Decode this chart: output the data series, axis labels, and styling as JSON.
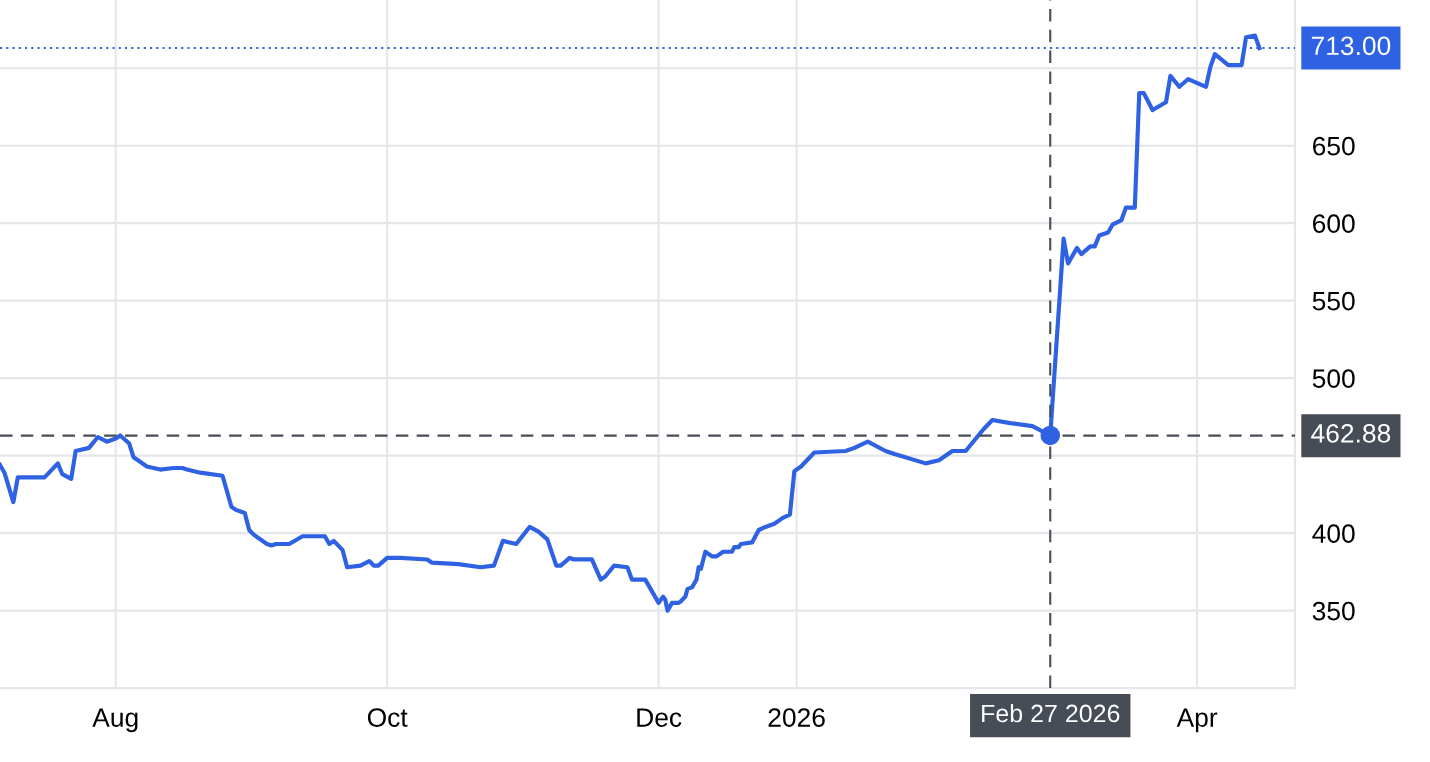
{
  "chart_data": {
    "type": "line",
    "x": [
      "2025-07-06",
      "2025-07-07",
      "2025-07-09",
      "2025-07-10",
      "2025-07-16",
      "2025-07-19",
      "2025-07-20",
      "2025-07-22",
      "2025-07-23",
      "2025-07-26",
      "2025-07-28",
      "2025-07-30",
      "2025-08-01",
      "2025-08-02",
      "2025-08-04",
      "2025-08-05",
      "2025-08-06",
      "2025-08-08",
      "2025-08-11",
      "2025-08-14",
      "2025-08-16",
      "2025-08-17",
      "2025-08-20",
      "2025-08-25",
      "2025-08-27",
      "2025-08-28",
      "2025-08-30",
      "2025-08-31",
      "2025-09-01",
      "2025-09-04",
      "2025-09-05",
      "2025-09-06",
      "2025-09-09",
      "2025-09-12",
      "2025-09-14",
      "2025-09-17",
      "2025-09-18",
      "2025-09-19",
      "2025-09-21",
      "2025-09-22",
      "2025-09-25",
      "2025-09-27",
      "2025-09-28",
      "2025-09-29",
      "2025-10-01",
      "2025-10-04",
      "2025-10-10",
      "2025-10-11",
      "2025-10-17",
      "2025-10-22",
      "2025-10-25",
      "2025-10-27",
      "2025-10-30",
      "2025-11-02",
      "2025-11-04",
      "2025-11-06",
      "2025-11-08",
      "2025-11-09",
      "2025-11-11",
      "2025-11-12",
      "2025-11-16",
      "2025-11-18",
      "2025-11-19",
      "2025-11-21",
      "2025-11-24",
      "2025-11-25",
      "2025-11-28",
      "2025-12-01",
      "2025-12-02",
      "2025-12-02T12:00",
      "2025-12-03",
      "2025-12-04",
      "2025-12-05T12:00",
      "2025-12-06",
      "2025-12-07",
      "2025-12-07T12:00",
      "2025-12-08T12:00",
      "2025-12-09T12:00",
      "2025-12-10",
      "2025-12-10T12:00",
      "2025-12-11T12:00",
      "2025-12-13",
      "2025-12-14",
      "2025-12-15T12:00",
      "2025-12-17T12:00",
      "2025-12-18",
      "2025-12-19",
      "2025-12-19T12:00",
      "2025-12-22",
      "2025-12-23T12:00",
      "2025-12-25",
      "2025-12-27",
      "2025-12-29",
      "2025-12-30T12:00",
      "2025-12-31T12:00",
      "2026-01-02",
      "2026-01-05",
      "2026-01-12",
      "2026-01-14",
      "2026-01-17",
      "2026-01-21",
      "2026-01-23",
      "2026-01-30",
      "2026-02-02",
      "2026-02-05",
      "2026-02-08",
      "2026-02-12",
      "2026-02-14",
      "2026-02-18",
      "2026-02-23",
      "2026-02-27",
      "2026-03-02",
      "2026-03-03",
      "2026-03-05",
      "2026-03-06",
      "2026-03-08",
      "2026-03-09",
      "2026-03-10",
      "2026-03-12",
      "2026-03-13",
      "2026-03-15",
      "2026-03-16",
      "2026-03-18",
      "2026-03-19",
      "2026-03-20",
      "2026-03-22",
      "2026-03-25",
      "2026-03-26",
      "2026-03-28",
      "2026-03-30",
      "2026-04-03",
      "2026-04-04",
      "2026-04-05",
      "2026-04-08",
      "2026-04-11",
      "2026-04-12",
      "2026-04-14",
      "2026-04-15"
    ],
    "series": [
      {
        "color": "#2f62e3",
        "values": [
          444,
          439,
          420,
          436,
          436,
          445,
          438,
          435,
          453,
          455,
          462,
          459,
          461,
          463,
          458,
          449,
          447,
          443,
          441,
          442,
          442,
          441,
          439,
          437,
          417,
          415,
          413,
          402,
          399,
          393,
          392,
          393,
          393,
          398,
          398,
          398,
          393,
          395,
          389,
          378,
          379,
          382,
          379,
          379,
          384,
          384,
          383,
          381,
          380,
          378,
          379,
          395,
          393,
          404,
          401,
          396,
          379,
          379,
          384,
          383,
          383,
          370,
          372,
          379,
          378,
          370,
          370,
          355,
          359,
          357,
          350,
          355,
          355,
          356,
          359,
          364,
          365,
          370,
          378,
          377,
          388,
          385,
          385,
          388,
          388,
          391,
          391,
          393,
          394,
          402,
          404,
          406,
          410,
          412,
          440,
          443,
          452,
          453,
          455,
          459,
          453,
          451,
          445,
          447,
          453,
          453,
          467,
          473,
          471,
          469,
          463,
          590,
          574,
          584,
          580,
          585,
          585,
          592,
          594,
          599,
          602,
          610,
          610,
          684,
          684,
          673,
          678,
          695,
          688,
          693,
          688,
          701,
          709,
          702,
          702,
          720,
          721,
          713
        ]
      },
      {
        "type": "scatter",
        "color": "#2f62e3",
        "marker": "circle",
        "x": [
          "2026-02-27"
        ],
        "values": [
          463
        ]
      }
    ],
    "xlim": [
      "2025-07-06",
      "2026-04-23"
    ],
    "xticks": [
      {
        "value": "2025-08-01",
        "label": "Aug"
      },
      {
        "value": "2025-10-01",
        "label": "Oct"
      },
      {
        "value": "2025-12-01",
        "label": "Dec"
      },
      {
        "value": "2026-01-01",
        "label": "2026"
      },
      {
        "value": "2026-04-01",
        "label": "Apr"
      }
    ],
    "ylim": [
      300,
      744
    ],
    "yticks": [
      350,
      400,
      {
        "value": 450,
        "label": null
      },
      500,
      550,
      600,
      650,
      {
        "value": 700,
        "label": null
      }
    ],
    "ref_lines": [
      {
        "axis": "y",
        "value": 713,
        "label": "713.00",
        "color": "#2f62e3",
        "line_style": "dotted"
      },
      {
        "axis": "y",
        "value": 462.88,
        "label": "462.88",
        "color": "#474d57",
        "line_style": "dashed"
      },
      {
        "axis": "x",
        "value": "2026-02-27",
        "label": "Feb 27 2026",
        "color": "#474d57",
        "line_style": "dashed"
      }
    ],
    "grid": true,
    "line_style": "solid",
    "marker": "none"
  }
}
